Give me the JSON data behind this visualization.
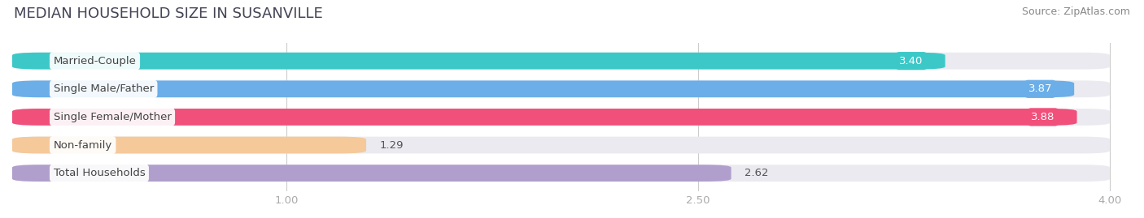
{
  "title": "MEDIAN HOUSEHOLD SIZE IN SUSANVILLE",
  "source": "Source: ZipAtlas.com",
  "categories": [
    "Married-Couple",
    "Single Male/Father",
    "Single Female/Mother",
    "Non-family",
    "Total Households"
  ],
  "values": [
    3.4,
    3.87,
    3.88,
    1.29,
    2.62
  ],
  "bar_colors": [
    "#3dc8c8",
    "#6baee8",
    "#f0507a",
    "#f5c99a",
    "#b09fcc"
  ],
  "bar_background": "#eaeaf0",
  "xlim_min": 0,
  "xlim_max": 4.0,
  "xticks": [
    1.0,
    2.5,
    4.0
  ],
  "title_fontsize": 13,
  "label_fontsize": 9.5,
  "value_fontsize": 9.5,
  "source_fontsize": 9,
  "background_color": "#ffffff",
  "value_label_inside": [
    true,
    true,
    true,
    false,
    false
  ],
  "value_label_colors_inside": [
    "#ffffff",
    "#ffffff",
    "#ffffff",
    "#555555",
    "#555555"
  ]
}
